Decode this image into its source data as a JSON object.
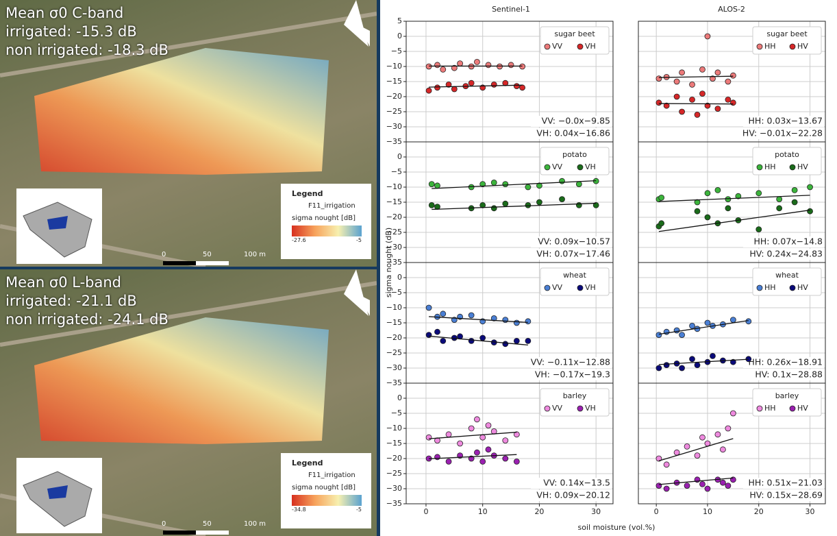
{
  "maps": [
    {
      "heading": "Mean σ0 C-band",
      "irrigated": "irrigated: -15.3 dB",
      "non_irrigated": "non irrigated: -18.3 dB",
      "legend": {
        "title": "Legend",
        "layer": "F11_irrigation",
        "scale_title": "sigma nought [dB]",
        "min": -27.6,
        "max": -5
      },
      "scale_bar": [
        "0",
        "50",
        "100 m"
      ]
    },
    {
      "heading": "Mean σ0 L-band",
      "irrigated": "irrigated: -21.1 dB",
      "non_irrigated": "non irrigated: -24.1 dB",
      "legend": {
        "title": "Legend",
        "layer": "F11_irrigation",
        "scale_title": "sigma nought [dB]",
        "min": -34.8,
        "max": -5
      },
      "scale_bar": [
        "0",
        "50",
        "100 m"
      ]
    }
  ],
  "figure": {
    "column_titles": [
      "Sentinel-1",
      "ALOS-2"
    ],
    "ylabel": "sigma nought (dB)",
    "xlabel": "soil moisture (vol.%)"
  },
  "chart_data": [
    {
      "type": "scatter",
      "title": "sugar beet",
      "xlim": [
        -3.5,
        33
      ],
      "ylim": [
        -35,
        5
      ],
      "xticks": [
        0,
        10,
        20,
        30
      ],
      "grid": true,
      "yticks": [
        5,
        0,
        {
          "value": -5,
          "label": "−5"
        },
        {
          "value": -10,
          "label": "−10"
        },
        {
          "value": -15,
          "label": "−15"
        },
        {
          "value": -20,
          "label": "−20"
        },
        {
          "value": -25,
          "label": "−25"
        },
        {
          "value": -30,
          "label": "−30"
        },
        {
          "value": -35,
          "label": "−35"
        }
      ],
      "series": [
        {
          "name": "VV",
          "color": "#ec7a7a",
          "x": [
            0.5,
            2,
            3,
            5,
            6,
            8,
            9,
            11,
            13,
            15,
            17
          ],
          "values": [
            -10,
            -9.5,
            -11,
            -10.5,
            -9,
            -10,
            -8.5,
            -9.5,
            -10,
            -9.5,
            -10
          ],
          "trend": {
            "slope": -0.0,
            "intercept": -9.85,
            "label": "VV: −0.0x−9.85"
          }
        },
        {
          "name": "VH",
          "color": "#d62728",
          "x": [
            0.5,
            2,
            4,
            5,
            7,
            8,
            10,
            12,
            14,
            16,
            17
          ],
          "values": [
            -18,
            -17,
            -16,
            -17.5,
            -16.5,
            -15.5,
            -17,
            -16,
            -15.5,
            -16.5,
            -17
          ],
          "trend": {
            "slope": 0.04,
            "intercept": -16.86,
            "label": "VH: 0.04x−16.86"
          }
        }
      ]
    },
    {
      "type": "scatter",
      "title": "sugar beet",
      "xlim": [
        -3.5,
        33
      ],
      "ylim": [
        -35,
        5
      ],
      "xticks": [
        0,
        10,
        20,
        30
      ],
      "grid": true,
      "yticks": [
        5,
        0,
        -5,
        -10,
        -15,
        -20,
        -25,
        -30,
        -35
      ],
      "series": [
        {
          "name": "HH",
          "color": "#ec7a7a",
          "x": [
            0.5,
            2,
            4,
            5,
            7,
            9,
            10,
            11,
            12,
            14,
            15
          ],
          "values": [
            -14,
            -13.5,
            -15,
            -12,
            -16,
            -11,
            0,
            -14,
            -12,
            -15,
            -13
          ],
          "trend": {
            "slope": 0.03,
            "intercept": -13.67,
            "label": "HH: 0.03x−13.67"
          }
        },
        {
          "name": "HV",
          "color": "#d62728",
          "x": [
            0.5,
            2,
            4,
            5,
            7,
            8,
            9,
            10,
            12,
            14,
            15
          ],
          "values": [
            -22,
            -23,
            -20,
            -25,
            -21,
            -26,
            -19,
            -23,
            -24,
            -21,
            -22
          ],
          "trend": {
            "slope": -0.01,
            "intercept": -22.28,
            "label": "HV: −0.01x−22.28"
          }
        }
      ]
    },
    {
      "type": "scatter",
      "title": "potato",
      "xlim": [
        -3.5,
        33
      ],
      "ylim": [
        -35,
        5
      ],
      "xticks": [
        0,
        10,
        20,
        30
      ],
      "grid": true,
      "yticks": [
        0,
        {
          "value": -5,
          "label": "−5"
        },
        {
          "value": -10,
          "label": "−10"
        },
        {
          "value": -15,
          "label": "−15"
        },
        {
          "value": -20,
          "label": "−20"
        },
        {
          "value": -25,
          "label": "−25"
        },
        {
          "value": -30,
          "label": "−30"
        },
        {
          "value": -35,
          "label": "−35"
        }
      ],
      "series": [
        {
          "name": "VV",
          "color": "#3cb43c",
          "x": [
            1,
            2,
            8,
            10,
            12,
            14,
            18,
            20,
            24,
            27,
            30
          ],
          "values": [
            -9,
            -9.5,
            -10,
            -9,
            -8.5,
            -9,
            -10,
            -9.5,
            -8,
            -9,
            -8
          ],
          "trend": {
            "slope": 0.09,
            "intercept": -10.57,
            "label": "VV: 0.09x−10.57"
          }
        },
        {
          "name": "VH",
          "color": "#1a6b1a",
          "x": [
            1,
            2,
            8,
            10,
            12,
            14,
            18,
            20,
            24,
            27,
            30
          ],
          "values": [
            -16,
            -16.5,
            -17,
            -16,
            -17,
            -15.5,
            -16,
            -15,
            -14,
            -16,
            -16
          ],
          "trend": {
            "slope": 0.07,
            "intercept": -17.46,
            "label": "VH: 0.07x−17.46"
          }
        }
      ]
    },
    {
      "type": "scatter",
      "title": "potato",
      "xlim": [
        -3.5,
        33
      ],
      "ylim": [
        -35,
        5
      ],
      "xticks": [
        0,
        10,
        20,
        30
      ],
      "grid": true,
      "yticks": [
        0,
        -5,
        -10,
        -15,
        -20,
        -25,
        -30,
        -35
      ],
      "series": [
        {
          "name": "HH",
          "color": "#3cb43c",
          "x": [
            0.5,
            1,
            8,
            10,
            12,
            14,
            16,
            20,
            24,
            27,
            30
          ],
          "values": [
            -14,
            -13.5,
            -15,
            -12,
            -11,
            -14,
            -13,
            -12,
            -14,
            -11,
            -10
          ],
          "trend": {
            "slope": 0.07,
            "intercept": -14.8,
            "label": "HH: 0.07x−14.8"
          }
        },
        {
          "name": "HV",
          "color": "#1a6b1a",
          "x": [
            0.5,
            1,
            8,
            10,
            12,
            14,
            16,
            20,
            24,
            27,
            30
          ],
          "values": [
            -23,
            -22,
            -18,
            -20,
            -22,
            -17,
            -21,
            -24,
            -17,
            -15,
            -18
          ],
          "trend": {
            "slope": 0.24,
            "intercept": -24.83,
            "label": "HV: 0.24x−24.83"
          }
        }
      ]
    },
    {
      "type": "scatter",
      "title": "wheat",
      "xlim": [
        -3.5,
        33
      ],
      "ylim": [
        -35,
        5
      ],
      "xticks": [
        0,
        10,
        20,
        30
      ],
      "grid": true,
      "yticks": [
        0,
        {
          "value": -5,
          "label": "−5"
        },
        {
          "value": -10,
          "label": "−10"
        },
        {
          "value": -15,
          "label": "−15"
        },
        {
          "value": -20,
          "label": "−20"
        },
        {
          "value": -25,
          "label": "−25"
        },
        {
          "value": -30,
          "label": "−30"
        },
        {
          "value": -35,
          "label": "−35"
        }
      ],
      "series": [
        {
          "name": "VV",
          "color": "#4a7fd4",
          "x": [
            0.5,
            2,
            3,
            5,
            6,
            8,
            10,
            12,
            14,
            16,
            18
          ],
          "values": [
            -10,
            -13,
            -12,
            -14,
            -13,
            -12.5,
            -14.5,
            -13.5,
            -14,
            -15,
            -14.5
          ],
          "trend": {
            "slope": -0.11,
            "intercept": -12.88,
            "label": "VV: −0.11x−12.88"
          }
        },
        {
          "name": "VH",
          "color": "#0a0a7a",
          "x": [
            0.5,
            2,
            3,
            5,
            6,
            8,
            10,
            12,
            14,
            16,
            18
          ],
          "values": [
            -19,
            -18,
            -21,
            -20,
            -19.5,
            -21,
            -20,
            -21.5,
            -22,
            -21,
            -21
          ],
          "trend": {
            "slope": -0.17,
            "intercept": -19.3,
            "label": "VH: −0.17x−19.3"
          }
        }
      ]
    },
    {
      "type": "scatter",
      "title": "wheat",
      "xlim": [
        -3.5,
        33
      ],
      "ylim": [
        -35,
        5
      ],
      "xticks": [
        0,
        10,
        20,
        30
      ],
      "grid": true,
      "yticks": [
        0,
        -5,
        -10,
        -15,
        -20,
        -25,
        -30,
        -35
      ],
      "series": [
        {
          "name": "HH",
          "color": "#4a7fd4",
          "x": [
            0.5,
            2,
            4,
            5,
            7,
            8,
            10,
            11,
            13,
            15,
            18
          ],
          "values": [
            -19,
            -18,
            -17.5,
            -19,
            -16,
            -17,
            -15,
            -16,
            -15.5,
            -14,
            -14.5
          ],
          "trend": {
            "slope": 0.26,
            "intercept": -18.91,
            "label": "HH: 0.26x−18.91"
          }
        },
        {
          "name": "HV",
          "color": "#0a0a7a",
          "x": [
            0.5,
            2,
            4,
            5,
            7,
            8,
            10,
            11,
            13,
            15,
            18
          ],
          "values": [
            -30,
            -29,
            -28.5,
            -30,
            -27,
            -29,
            -28,
            -26,
            -27.5,
            -28,
            -27
          ],
          "trend": {
            "slope": 0.1,
            "intercept": -28.88,
            "label": "HV: 0.1x−28.88"
          }
        }
      ]
    },
    {
      "type": "scatter",
      "title": "barley",
      "xlim": [
        -3.5,
        33
      ],
      "ylim": [
        -35,
        5
      ],
      "xticks": [
        0,
        10,
        20,
        30
      ],
      "grid": true,
      "yticks": [
        0,
        {
          "value": -5,
          "label": "−5"
        },
        {
          "value": -10,
          "label": "−10"
        },
        {
          "value": -15,
          "label": "−15"
        },
        {
          "value": -20,
          "label": "−20"
        },
        {
          "value": -25,
          "label": "−25"
        },
        {
          "value": -30,
          "label": "−30"
        },
        {
          "value": -35,
          "label": "−35"
        }
      ],
      "series": [
        {
          "name": "VV",
          "color": "#ee8ade",
          "x": [
            0.5,
            2,
            4,
            6,
            8,
            9,
            10,
            11,
            12,
            14,
            16
          ],
          "values": [
            -13,
            -14,
            -12,
            -15,
            -10,
            -7,
            -13,
            -9,
            -11,
            -14,
            -12
          ],
          "trend": {
            "slope": 0.14,
            "intercept": -13.5,
            "label": "VV: 0.14x−13.5"
          }
        },
        {
          "name": "VH",
          "color": "#9a20b0",
          "x": [
            0.5,
            2,
            4,
            6,
            8,
            9,
            10,
            11,
            12,
            14,
            16
          ],
          "values": [
            -20,
            -19.5,
            -21,
            -19,
            -20,
            -18,
            -21,
            -17,
            -19,
            -20,
            -21
          ],
          "trend": {
            "slope": 0.09,
            "intercept": -20.12,
            "label": "VH: 0.09x−20.12"
          }
        }
      ]
    },
    {
      "type": "scatter",
      "title": "barley",
      "xlim": [
        -3.5,
        33
      ],
      "ylim": [
        -35,
        5
      ],
      "xticks": [
        0,
        10,
        20,
        30
      ],
      "grid": true,
      "yticks": [
        0,
        -5,
        -10,
        -15,
        -20,
        -25,
        -30,
        -35
      ],
      "series": [
        {
          "name": "HH",
          "color": "#ee8ade",
          "x": [
            0.5,
            2,
            4,
            6,
            8,
            9,
            10,
            12,
            13,
            14,
            15
          ],
          "values": [
            -20,
            -22,
            -18,
            -16,
            -19,
            -13,
            -15,
            -12,
            -17,
            -10,
            -5
          ],
          "trend": {
            "slope": 0.51,
            "intercept": -21.03,
            "label": "HH: 0.51x−21.03"
          }
        },
        {
          "name": "HV",
          "color": "#9a20b0",
          "x": [
            0.5,
            2,
            4,
            6,
            8,
            9,
            10,
            12,
            13,
            14,
            15
          ],
          "values": [
            -29,
            -30,
            -28,
            -29,
            -27,
            -28.5,
            -30,
            -27,
            -28,
            -29,
            -27
          ],
          "trend": {
            "slope": 0.15,
            "intercept": -28.69,
            "label": "HV: 0.15x−28.69"
          }
        }
      ]
    }
  ]
}
